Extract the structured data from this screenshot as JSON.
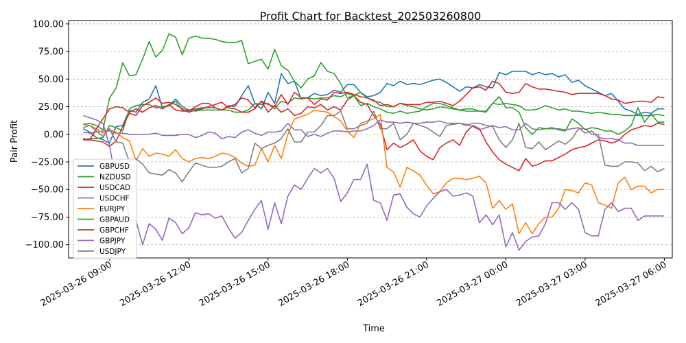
{
  "chart_data": {
    "type": "line",
    "title": "Profit Chart for Backtest_202503260800",
    "xlabel": "Time",
    "ylabel": "Pair Profit",
    "x_range_hours": [
      -0.55,
      22.3
    ],
    "ylim": [
      -112,
      103
    ],
    "yticks": [
      100,
      75,
      50,
      25,
      0,
      -25,
      -50,
      -75,
      -100
    ],
    "ytick_labels": [
      "100.00",
      "75.00",
      "50.00",
      "25.00",
      "0.00",
      "−25.00",
      "−50.00",
      "−75.00",
      "−100.00"
    ],
    "xticks_hours": [
      1,
      4,
      7,
      10,
      13,
      16,
      19,
      22
    ],
    "xtick_labels": [
      "2025-03-26 09:00",
      "2025-03-26 12:00",
      "2025-03-26 15:00",
      "2025-03-26 18:00",
      "2025-03-26 21:00",
      "2025-03-27 00:00",
      "2025-03-27 03:00",
      "2025-03-27 06:00"
    ],
    "x_unit": "hours since 2025-03-26 08:00",
    "x_start_hours": 0,
    "x_step_hours": 0.25,
    "grid": "y-dashed",
    "legend_position": "lower-left",
    "series": [
      {
        "name": "GBPUSD",
        "color": "#1f77b4",
        "values": [
          5,
          2,
          -3,
          -5,
          -8,
          7,
          8,
          22,
          20,
          29,
          32,
          44,
          24,
          26,
          32,
          25,
          22,
          23,
          24,
          24,
          24,
          22,
          26,
          25,
          35,
          44,
          28,
          23,
          38,
          28,
          55,
          46,
          48,
          32,
          33,
          37,
          35,
          36,
          40,
          38,
          45,
          45,
          38,
          34,
          35,
          38,
          46,
          44,
          48,
          45,
          46,
          45,
          47,
          49,
          50,
          47,
          43,
          39,
          43,
          42,
          45,
          43,
          42,
          56,
          54,
          57,
          57,
          57,
          54,
          56,
          54,
          55,
          52,
          54,
          47,
          49,
          44,
          41,
          38,
          35,
          37,
          30,
          23,
          21,
          18,
          20,
          19,
          23,
          23
        ]
      },
      {
        "name": "NZDUSD",
        "color": "#2ca02c",
        "values": [
          -5,
          -4,
          -4,
          -3,
          8,
          6,
          3,
          23,
          26,
          27,
          27,
          24,
          25,
          26,
          30,
          22,
          22,
          21,
          22,
          22,
          22,
          22,
          22,
          20,
          20,
          22,
          28,
          27,
          28,
          23,
          30,
          28,
          33,
          32,
          33,
          32,
          33,
          33,
          35,
          34,
          37,
          35,
          38,
          33,
          30,
          29,
          25,
          25,
          28,
          26,
          25,
          23,
          22,
          23,
          25,
          24,
          23,
          22,
          21,
          21,
          21,
          20,
          28,
          27,
          28,
          27,
          26,
          22,
          22,
          23,
          26,
          24,
          22,
          23,
          21,
          21,
          20,
          19,
          20,
          19,
          18,
          18,
          17,
          17,
          17,
          17,
          17,
          18,
          17
        ]
      },
      {
        "name": "USDCAD",
        "color": "#d62728",
        "values": [
          -5,
          -5,
          -6,
          -7,
          -11,
          -6,
          7,
          19,
          17,
          26,
          29,
          33,
          28,
          29,
          27,
          23,
          20,
          22,
          23,
          25,
          27,
          29,
          24,
          23,
          20,
          20,
          23,
          30,
          20,
          26,
          20,
          23,
          17,
          19,
          25,
          24,
          27,
          22,
          25,
          22,
          31,
          35,
          29,
          27,
          17,
          9,
          -14,
          -8,
          -12,
          -9,
          -5,
          -15,
          -20,
          -23,
          -12,
          -8,
          -5,
          -10,
          2,
          8,
          5,
          -7,
          -16,
          -23,
          -27,
          -30,
          -33,
          -22,
          -29,
          -27,
          -24,
          -24,
          -21,
          -18,
          -14,
          -12,
          -11,
          -8,
          -5,
          -6,
          -8,
          -6,
          0,
          4,
          6,
          8,
          7,
          10,
          9
        ]
      },
      {
        "name": "USDCHF",
        "color": "#9467bd",
        "values": [
          2,
          1,
          2,
          3,
          3,
          1,
          1,
          0,
          0,
          0,
          0,
          1,
          -1,
          -1,
          -1,
          0,
          0,
          -3,
          -1,
          2,
          1,
          -4,
          -2,
          -3,
          2,
          4,
          1,
          -1,
          2,
          2,
          3,
          10,
          4,
          4,
          -2,
          0,
          -2,
          1,
          3,
          3,
          2,
          3,
          3,
          5,
          8,
          13,
          11,
          11,
          10,
          11,
          10,
          10,
          11,
          11,
          12,
          10,
          10,
          10,
          9,
          7,
          4,
          6,
          8,
          6,
          7,
          4,
          4,
          10,
          5,
          4,
          5,
          5,
          5,
          4,
          5,
          6,
          1,
          3,
          -3,
          -4,
          -4,
          -5,
          -8,
          -8,
          -10,
          -10,
          -10,
          -10,
          -10
        ]
      },
      {
        "name": "EURJPY",
        "color": "#ff7f0e",
        "values": [
          9,
          8,
          5,
          1,
          4,
          2,
          -3,
          -6,
          -24,
          -13,
          -20,
          -17,
          -18,
          -20,
          -14,
          -22,
          -25,
          -22,
          -21,
          -22,
          -20,
          -17,
          -18,
          -21,
          -26,
          -29,
          -28,
          -13,
          -25,
          -10,
          -22,
          0,
          14,
          16,
          18,
          22,
          21,
          20,
          16,
          12,
          3,
          -3,
          10,
          12,
          14,
          18,
          -30,
          -34,
          -48,
          -30,
          -33,
          -37,
          -46,
          -54,
          -52,
          -44,
          -40,
          -40,
          -41,
          -40,
          -38,
          -44,
          -67,
          -60,
          -68,
          -63,
          -90,
          -80,
          -90,
          -81,
          -75,
          -75,
          -67,
          -50,
          -51,
          -53,
          -44,
          -46,
          -62,
          -64,
          -67,
          -44,
          -39,
          -50,
          -47,
          -47,
          -53,
          -50,
          -50
        ]
      },
      {
        "name": "GBPAUD",
        "color": "#2ca02c",
        "values": [
          9,
          10,
          8,
          4,
          33,
          42,
          65,
          53,
          54,
          68,
          84,
          70,
          76,
          91,
          88,
          72,
          87,
          89,
          87,
          87,
          86,
          84,
          83,
          83,
          85,
          64,
          66,
          68,
          59,
          77,
          62,
          58,
          48,
          42,
          50,
          53,
          65,
          57,
          55,
          46,
          33,
          35,
          26,
          28,
          25,
          23,
          20,
          19,
          21,
          19,
          20,
          21,
          25,
          28,
          28,
          26,
          24,
          22,
          23,
          23,
          21,
          21,
          28,
          34,
          24,
          24,
          20,
          6,
          0,
          6,
          5,
          6,
          4,
          3,
          14,
          10,
          4,
          6,
          5,
          3,
          3,
          0,
          3,
          8,
          24,
          11,
          19,
          11,
          11
        ]
      },
      {
        "name": "GBPCHF",
        "color": "#d62728",
        "values": [
          -4,
          -5,
          5,
          14,
          23,
          25,
          24,
          20,
          23,
          20,
          24,
          26,
          23,
          27,
          22,
          21,
          21,
          25,
          28,
          28,
          24,
          22,
          25,
          27,
          33,
          31,
          24,
          30,
          27,
          25,
          36,
          27,
          38,
          33,
          33,
          27,
          32,
          31,
          38,
          37,
          38,
          36,
          34,
          33,
          31,
          26,
          27,
          25,
          28,
          27,
          27,
          27,
          29,
          29,
          30,
          28,
          26,
          30,
          36,
          42,
          43,
          40,
          48,
          46,
          38,
          37,
          38,
          46,
          43,
          41,
          41,
          40,
          39,
          38,
          36,
          37,
          37,
          37,
          37,
          35,
          32,
          31,
          28,
          29,
          30,
          30,
          29,
          34,
          33
        ]
      },
      {
        "name": "GBPJPY",
        "color": "#9467bd",
        "values": [
          17,
          15,
          13,
          10,
          -10,
          -44,
          -40,
          -76,
          -78,
          -100,
          -81,
          -86,
          -96,
          -76,
          -80,
          -90,
          -85,
          -71,
          -73,
          -72,
          -76,
          -74,
          -85,
          -94,
          -89,
          -78,
          -68,
          -60,
          -86,
          -62,
          -81,
          -56,
          -46,
          -50,
          -40,
          -31,
          -35,
          -31,
          -40,
          -61,
          -53,
          -41,
          -41,
          -27,
          -60,
          -62,
          -78,
          -55,
          -54,
          -66,
          -72,
          -75,
          -65,
          -58,
          -52,
          -50,
          -56,
          -55,
          -53,
          -56,
          -80,
          -73,
          -82,
          -73,
          -102,
          -89,
          -105,
          -97,
          -93,
          -92,
          -81,
          -62,
          -62,
          -68,
          -62,
          -68,
          -89,
          -92,
          -92,
          -68,
          -62,
          -70,
          -67,
          -67,
          -78,
          -74,
          -74,
          -74,
          -74
        ]
      },
      {
        "name": "USDJPY",
        "color": "#7f7f7f",
        "values": [
          6,
          8,
          3,
          -2,
          5,
          -7,
          -8,
          -25,
          -22,
          -27,
          -35,
          -36,
          -37,
          -32,
          -35,
          -43,
          -34,
          -26,
          -28,
          -30,
          -30,
          -29,
          -25,
          -22,
          -35,
          -31,
          -8,
          -13,
          -10,
          -8,
          -4,
          5,
          -7,
          -7,
          2,
          2,
          8,
          17,
          17,
          21,
          5,
          5,
          8,
          10,
          21,
          5,
          5,
          10,
          -5,
          0,
          10,
          8,
          6,
          2,
          -2,
          8,
          9,
          10,
          8,
          10,
          10,
          8,
          7,
          -5,
          -12,
          -5,
          10,
          -12,
          -13,
          -7,
          -14,
          -10,
          -6,
          -9,
          -4,
          5,
          5,
          0,
          0,
          -28,
          -29,
          -29,
          -25,
          -25,
          -26,
          -33,
          -29,
          -34,
          -31
        ]
      }
    ]
  }
}
